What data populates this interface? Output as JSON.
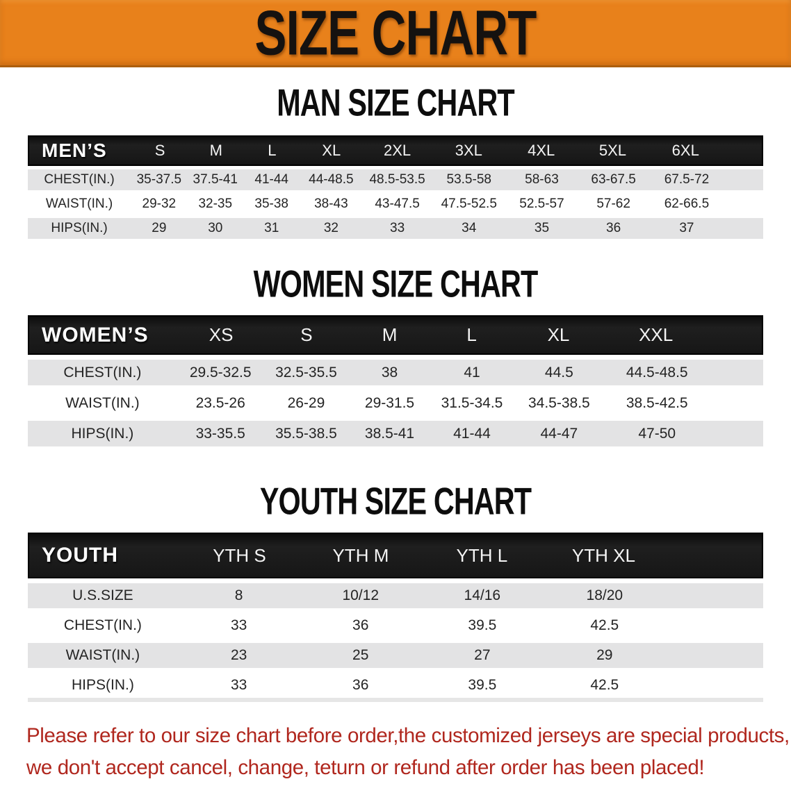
{
  "banner": {
    "title": "SIZE CHART",
    "bg_color": "#E8811B"
  },
  "sections": [
    {
      "id": "men",
      "title": "MAN SIZE CHART",
      "table": {
        "label_header": "MEN’S",
        "columns": [
          "S",
          "M",
          "L",
          "XL",
          "2XL",
          "3XL",
          "4XL",
          "5XL",
          "6XL"
        ],
        "rows": [
          {
            "label": "CHEST(IN.)",
            "values": [
              "35-37.5",
              "37.5-41",
              "41-44",
              "44-48.5",
              "48.5-53.5",
              "53.5-58",
              "58-63",
              "63-67.5",
              "67.5-72"
            ]
          },
          {
            "label": "WAIST(IN.)",
            "values": [
              "29-32",
              "32-35",
              "35-38",
              "38-43",
              "43-47.5",
              "47.5-52.5",
              "52.5-57",
              "57-62",
              "62-66.5"
            ]
          },
          {
            "label": "HIPS(IN.)",
            "values": [
              "29",
              "30",
              "31",
              "32",
              "33",
              "34",
              "35",
              "36",
              "37"
            ]
          }
        ]
      }
    },
    {
      "id": "women",
      "title": "WOMEN SIZE CHART",
      "table": {
        "label_header": "WOMEN’S",
        "columns": [
          "XS",
          "S",
          "M",
          "L",
          "XL",
          "XXL"
        ],
        "rows": [
          {
            "label": "CHEST(IN.)",
            "values": [
              "29.5-32.5",
              "32.5-35.5",
              "38",
              "41",
              "44.5",
              "44.5-48.5"
            ]
          },
          {
            "label": "WAIST(IN.)",
            "values": [
              "23.5-26",
              "26-29",
              "29-31.5",
              "31.5-34.5",
              "34.5-38.5",
              "38.5-42.5"
            ]
          },
          {
            "label": "HIPS(IN.)",
            "values": [
              "33-35.5",
              "35.5-38.5",
              "38.5-41",
              "41-44",
              "44-47",
              "47-50"
            ]
          }
        ]
      }
    },
    {
      "id": "youth",
      "title": "YOUTH SIZE CHART",
      "table": {
        "label_header": "YOUTH",
        "columns": [
          "YTH S",
          "YTH M",
          "YTH L",
          "YTH XL"
        ],
        "rows": [
          {
            "label": "U.S.SIZE",
            "values": [
              "8",
              "10/12",
              "14/16",
              "18/20"
            ]
          },
          {
            "label": "CHEST(IN.)",
            "values": [
              "33",
              "36",
              "39.5",
              "42.5"
            ]
          },
          {
            "label": "WAIST(IN.)",
            "values": [
              "23",
              "25",
              "27",
              "29"
            ]
          },
          {
            "label": "HIPS(IN.)",
            "values": [
              "33",
              "36",
              "39.5",
              "42.5"
            ]
          }
        ]
      }
    }
  ],
  "disclaimer": {
    "line1": "Please refer to our size chart before order,the customized jerseys are special products,",
    "line2": "we don't accept cancel, change, teturn or refund after order has been placed!",
    "color": "#B0271E"
  },
  "colors": {
    "row_gray": "#E3E3E4",
    "header_black": "#161616",
    "banner_orange": "#E8811B"
  }
}
